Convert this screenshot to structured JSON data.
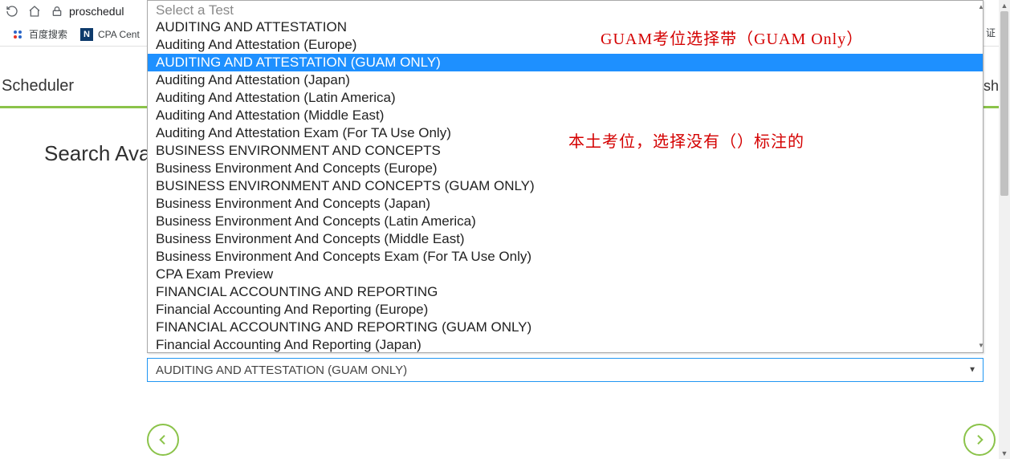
{
  "browser": {
    "url_host": "proschedul",
    "bookmarks": [
      {
        "label": "百度搜索",
        "type": "baidu"
      },
      {
        "label": "CPA Cent",
        "type": "n"
      }
    ],
    "right_edge_tab_fragment": "证"
  },
  "header": {
    "left_fragment": "Scheduler",
    "right_fragment": "ish"
  },
  "section_title_fragment": "Search Ava",
  "dropdown": {
    "placeholder": "Select a Test",
    "highlighted_index": 2,
    "options": [
      "AUDITING AND ATTESTATION",
      "Auditing And Attestation (Europe)",
      "AUDITING AND ATTESTATION (GUAM ONLY)",
      "Auditing And Attestation (Japan)",
      "Auditing And Attestation (Latin America)",
      "Auditing And Attestation (Middle East)",
      "Auditing And Attestation Exam (For TA Use Only)",
      "BUSINESS ENVIRONMENT AND CONCEPTS",
      "Business Environment And Concepts (Europe)",
      "BUSINESS ENVIRONMENT AND CONCEPTS (GUAM ONLY)",
      "Business Environment And Concepts (Japan)",
      "Business Environment And Concepts (Latin America)",
      "Business Environment And Concepts (Middle East)",
      "Business Environment And Concepts Exam (For TA Use Only)",
      "CPA Exam Preview",
      "FINANCIAL ACCOUNTING AND REPORTING",
      "Financial Accounting And Reporting (Europe)",
      "FINANCIAL ACCOUNTING AND REPORTING (GUAM ONLY)",
      "Financial Accounting And Reporting (Japan)"
    ],
    "selected_value": "AUDITING AND ATTESTATION (GUAM ONLY)"
  },
  "annotations": {
    "line1": "GUAM考位选择带（GUAM Only）",
    "line2": "本土考位，选择没有（）标注的"
  },
  "colors": {
    "highlight_bg": "#1e90ff",
    "accent_green": "#8bc34a",
    "annotation_red": "#d40000",
    "select_border_focus": "#2196f3"
  }
}
